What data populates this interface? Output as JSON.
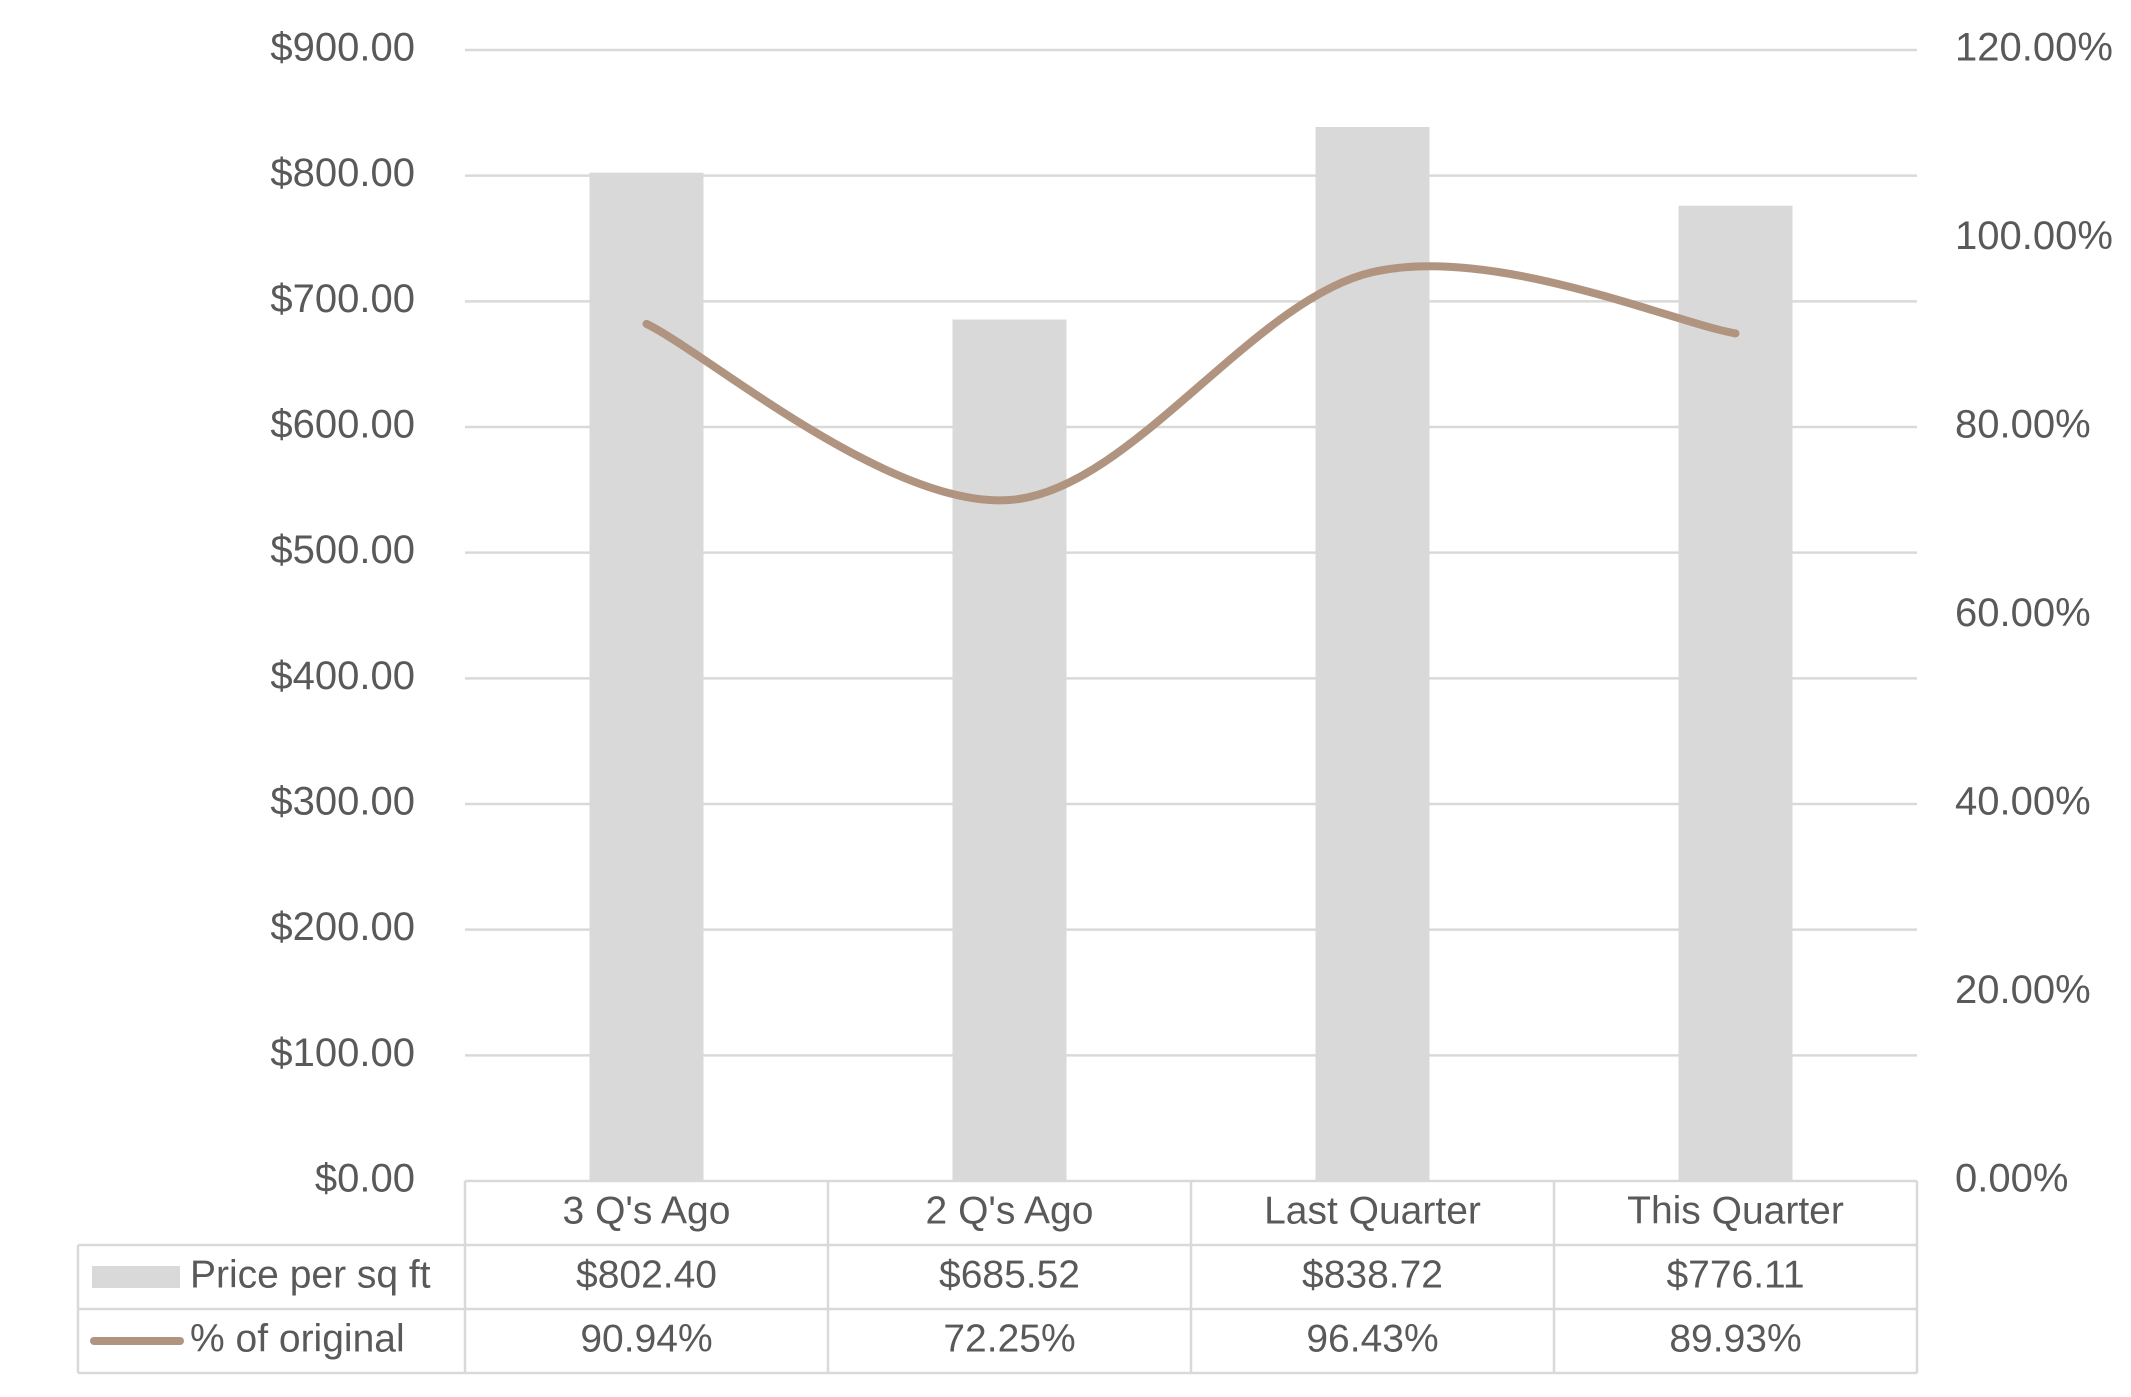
{
  "chart_data": {
    "type": "bar",
    "categories": [
      "3 Q's Ago",
      "2 Q's Ago",
      "Last Quarter",
      "This Quarter"
    ],
    "series": [
      {
        "name": "Price per sq ft",
        "type": "bar",
        "axis": "left",
        "values": [
          802.4,
          685.52,
          838.72,
          776.11
        ],
        "labels": [
          "$802.40",
          "$685.52",
          "$838.72",
          "$776.11"
        ],
        "color": "#d9d9d9"
      },
      {
        "name": "% of original",
        "type": "line",
        "axis": "right",
        "smooth": true,
        "values": [
          90.94,
          72.25,
          96.43,
          89.93
        ],
        "labels": [
          "90.94%",
          "72.25%",
          "96.43%",
          "89.93%"
        ],
        "color": "#b09480"
      }
    ],
    "y_left": {
      "ylim": [
        0,
        900
      ],
      "ticks": [
        0,
        100,
        200,
        300,
        400,
        500,
        600,
        700,
        800,
        900
      ],
      "tick_labels": [
        "$0.00",
        "$100.00",
        "$200.00",
        "$300.00",
        "$400.00",
        "$500.00",
        "$600.00",
        "$700.00",
        "$800.00",
        "$900.00"
      ]
    },
    "y_right": {
      "ylim": [
        0,
        120
      ],
      "ticks": [
        0,
        20,
        40,
        60,
        80,
        100,
        120
      ],
      "tick_labels": [
        "0.00%",
        "20.00%",
        "40.00%",
        "60.00%",
        "80.00%",
        "100.00%",
        "120.00%"
      ]
    },
    "grid": true,
    "legend": "data-table",
    "title": "",
    "xlabel": "",
    "ylabel": ""
  },
  "colors": {
    "bar": "#d9d9d9",
    "line": "#b09480",
    "grid": "#d9d9d9",
    "text": "#595959"
  }
}
